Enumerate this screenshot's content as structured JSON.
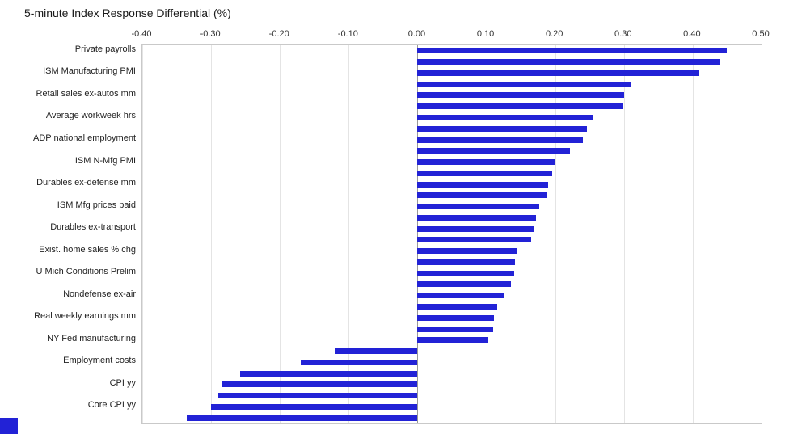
{
  "chart_data": {
    "type": "bar",
    "orientation": "horizontal",
    "title": "5-minute Index Response Differential (%)",
    "xlabel": "",
    "ylabel": "",
    "xlim": [
      -0.4,
      0.5
    ],
    "x_axis_position": "top",
    "grid": true,
    "legend_position": "none",
    "bar_color": "#2222d6",
    "grid_color": "#e4e4e4",
    "x_ticks": [
      {
        "value": -0.4,
        "label": "-0.40"
      },
      {
        "value": -0.3,
        "label": "-0.30"
      },
      {
        "value": -0.2,
        "label": "-0.20"
      },
      {
        "value": -0.1,
        "label": "-0.10"
      },
      {
        "value": 0.0,
        "label": "0.00"
      },
      {
        "value": 0.1,
        "label": "0.10"
      },
      {
        "value": 0.2,
        "label": "0.20"
      },
      {
        "value": 0.3,
        "label": "0.30"
      },
      {
        "value": 0.4,
        "label": "0.40"
      },
      {
        "value": 0.5,
        "label": "0.50"
      }
    ],
    "bars": [
      {
        "label": "Private payrolls",
        "value": 0.45
      },
      {
        "label": "",
        "value": 0.44
      },
      {
        "label": "ISM Manufacturing PMI",
        "value": 0.41
      },
      {
        "label": "",
        "value": 0.31
      },
      {
        "label": "Retail sales ex-autos mm",
        "value": 0.3
      },
      {
        "label": "",
        "value": 0.298
      },
      {
        "label": "Average workweek hrs",
        "value": 0.255
      },
      {
        "label": "",
        "value": 0.246
      },
      {
        "label": "ADP national employment",
        "value": 0.24
      },
      {
        "label": "",
        "value": 0.222
      },
      {
        "label": "ISM N-Mfg PMI",
        "value": 0.2
      },
      {
        "label": "",
        "value": 0.196
      },
      {
        "label": "Durables ex-defense mm",
        "value": 0.19
      },
      {
        "label": "",
        "value": 0.188
      },
      {
        "label": "ISM Mfg prices paid",
        "value": 0.177
      },
      {
        "label": "",
        "value": 0.172
      },
      {
        "label": "Durables ex-transport",
        "value": 0.17
      },
      {
        "label": "",
        "value": 0.165
      },
      {
        "label": "Exist. home sales % chg",
        "value": 0.145
      },
      {
        "label": "",
        "value": 0.142
      },
      {
        "label": "U Mich Conditions Prelim",
        "value": 0.14
      },
      {
        "label": "",
        "value": 0.136
      },
      {
        "label": "Nondefense ex-air",
        "value": 0.125
      },
      {
        "label": "",
        "value": 0.116
      },
      {
        "label": "Real weekly earnings mm",
        "value": 0.111
      },
      {
        "label": "",
        "value": 0.11
      },
      {
        "label": "NY Fed manufacturing",
        "value": 0.103
      },
      {
        "label": "",
        "value": -0.12
      },
      {
        "label": "Employment costs",
        "value": -0.17
      },
      {
        "label": "",
        "value": -0.258
      },
      {
        "label": "CPI  yy",
        "value": -0.285
      },
      {
        "label": "",
        "value": -0.29
      },
      {
        "label": "Core CPI  yy",
        "value": -0.3
      },
      {
        "label": "",
        "value": -0.335
      }
    ]
  }
}
